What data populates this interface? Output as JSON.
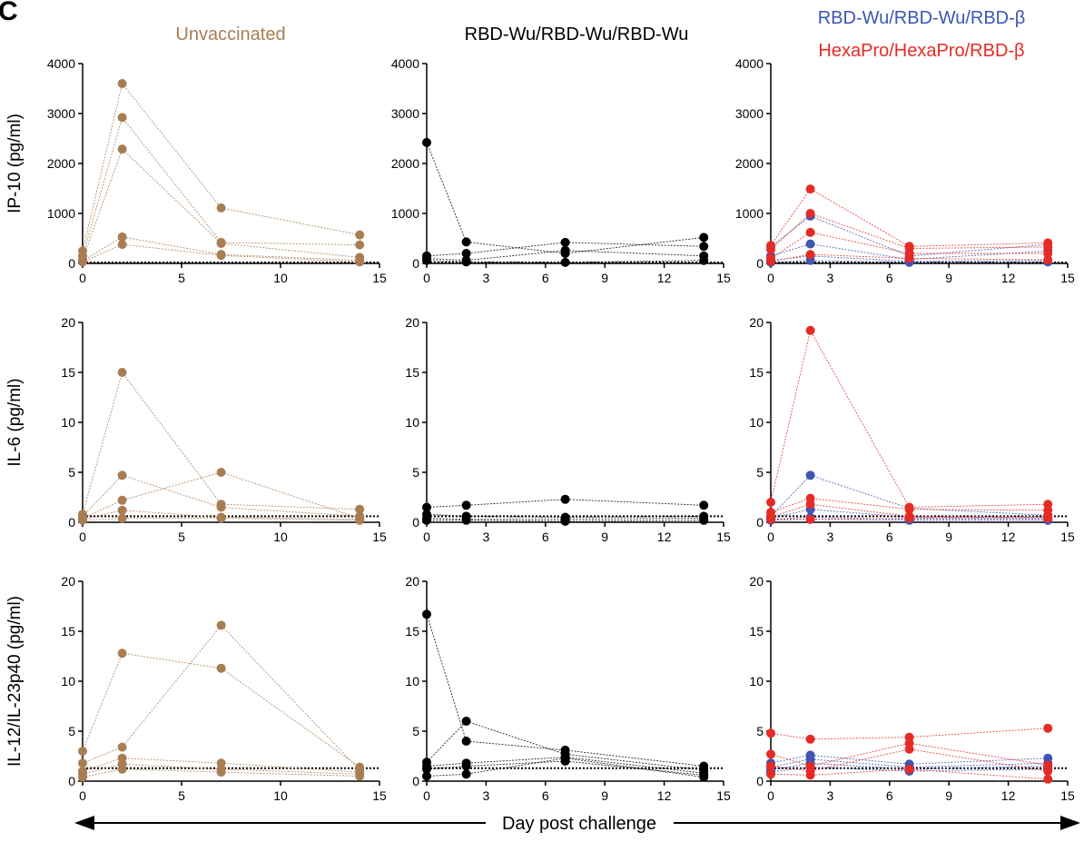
{
  "panel_letter": "C",
  "colors": {
    "unvaccinated": "#a87d54",
    "rbd_wu": "#000000",
    "rbd_beta": "#3d55b3",
    "hexapro": "#e62b24",
    "axis": "#000000",
    "dotted_line": "#000000"
  },
  "column_titles": {
    "unvaccinated": "Unvaccinated",
    "rbd_wu": "RBD-Wu/RBD-Wu/RBD-Wu",
    "rbd_beta": "RBD-Wu/RBD-Wu/RBD-β",
    "hexapro": "HexaPro/HexaPro/RBD-β"
  },
  "row_labels": [
    "IP-10 (pg/ml)",
    "IL-6 (pg/ml)",
    "IL-12/IL-23p40 (pg/ml)"
  ],
  "x_axis_title": "Day post challenge",
  "chart_data": [
    {
      "type": "line",
      "row": 0,
      "col": 0,
      "ylabel": "IP-10 (pg/ml)",
      "xlim": [
        0,
        15
      ],
      "xticks": [
        0,
        5,
        10,
        15
      ],
      "ylim": [
        0,
        4000
      ],
      "yticks": [
        0,
        1000,
        2000,
        3000,
        4000
      ],
      "threshold": 0,
      "series": [
        {
          "group": "unvaccinated",
          "x": [
            0,
            2,
            7,
            14
          ],
          "y": [
            250,
            3600,
            1110,
            570
          ]
        },
        {
          "group": "unvaccinated",
          "x": [
            0,
            2,
            7,
            14
          ],
          "y": [
            150,
            2920,
            420,
            370
          ]
        },
        {
          "group": "unvaccinated",
          "x": [
            0,
            2,
            7,
            14
          ],
          "y": [
            80,
            2290,
            400,
            120
          ]
        },
        {
          "group": "unvaccinated",
          "x": [
            0,
            2,
            7,
            14
          ],
          "y": [
            50,
            530,
            180,
            60
          ]
        },
        {
          "group": "unvaccinated",
          "x": [
            0,
            2,
            7,
            14
          ],
          "y": [
            30,
            380,
            160,
            30
          ]
        }
      ]
    },
    {
      "type": "line",
      "row": 0,
      "col": 1,
      "ylabel": "IP-10 (pg/ml)",
      "xlim": [
        0,
        15
      ],
      "xticks": [
        0,
        3,
        6,
        9,
        12,
        15
      ],
      "ylim": [
        0,
        4000
      ],
      "yticks": [
        0,
        1000,
        2000,
        3000,
        4000
      ],
      "threshold": 0,
      "series": [
        {
          "group": "rbd_wu",
          "x": [
            0,
            2,
            7,
            14
          ],
          "y": [
            2420,
            430,
            200,
            520
          ]
        },
        {
          "group": "rbd_wu",
          "x": [
            0,
            2,
            7,
            14
          ],
          "y": [
            150,
            200,
            420,
            340
          ]
        },
        {
          "group": "rbd_wu",
          "x": [
            0,
            2,
            7,
            14
          ],
          "y": [
            100,
            60,
            260,
            150
          ]
        },
        {
          "group": "rbd_wu",
          "x": [
            0,
            2,
            7,
            14
          ],
          "y": [
            60,
            30,
            20,
            60
          ]
        }
      ]
    },
    {
      "type": "line",
      "row": 0,
      "col": 2,
      "ylabel": "IP-10 (pg/ml)",
      "xlim": [
        0,
        15
      ],
      "xticks": [
        0,
        3,
        6,
        9,
        12,
        15
      ],
      "ylim": [
        0,
        4000
      ],
      "yticks": [
        0,
        1000,
        2000,
        3000,
        4000
      ],
      "threshold": 0,
      "series": [
        {
          "group": "rbd_beta",
          "x": [
            0,
            2,
            7,
            14
          ],
          "y": [
            330,
            950,
            150,
            380
          ]
        },
        {
          "group": "rbd_beta",
          "x": [
            0,
            2,
            7,
            14
          ],
          "y": [
            150,
            390,
            80,
            250
          ]
        },
        {
          "group": "rbd_beta",
          "x": [
            0,
            2,
            7,
            14
          ],
          "y": [
            60,
            150,
            40,
            60
          ]
        },
        {
          "group": "rbd_beta",
          "x": [
            0,
            2,
            7,
            14
          ],
          "y": [
            20,
            60,
            20,
            30
          ]
        },
        {
          "group": "hexapro",
          "x": [
            0,
            2,
            7,
            14
          ],
          "y": [
            360,
            1490,
            340,
            410
          ]
        },
        {
          "group": "hexapro",
          "x": [
            0,
            2,
            7,
            14
          ],
          "y": [
            280,
            1000,
            300,
            330
          ]
        },
        {
          "group": "hexapro",
          "x": [
            0,
            2,
            7,
            14
          ],
          "y": [
            100,
            620,
            200,
            200
          ]
        },
        {
          "group": "hexapro",
          "x": [
            0,
            2,
            7,
            14
          ],
          "y": [
            40,
            180,
            100,
            70
          ]
        }
      ]
    },
    {
      "type": "line",
      "row": 1,
      "col": 0,
      "ylabel": "IL-6 (pg/ml)",
      "xlim": [
        0,
        15
      ],
      "xticks": [
        0,
        5,
        10,
        15
      ],
      "ylim": [
        0,
        20
      ],
      "yticks": [
        0,
        5,
        10,
        15,
        20
      ],
      "threshold": 0.6,
      "series": [
        {
          "group": "unvaccinated",
          "x": [
            0,
            2,
            7,
            14
          ],
          "y": [
            0.8,
            15.0,
            1.8,
            1.3
          ]
        },
        {
          "group": "unvaccinated",
          "x": [
            0,
            2,
            7,
            14
          ],
          "y": [
            0.6,
            4.7,
            1.5,
            0.6
          ]
        },
        {
          "group": "unvaccinated",
          "x": [
            0,
            2,
            7,
            14
          ],
          "y": [
            0.4,
            2.2,
            5.0,
            0.4
          ]
        },
        {
          "group": "unvaccinated",
          "x": [
            0,
            2,
            7,
            14
          ],
          "y": [
            0.3,
            1.2,
            0.5,
            0.3
          ]
        },
        {
          "group": "unvaccinated",
          "x": [
            0,
            2,
            7,
            14
          ],
          "y": [
            0.2,
            0.4,
            0.4,
            0.2
          ]
        }
      ]
    },
    {
      "type": "line",
      "row": 1,
      "col": 1,
      "ylabel": "IL-6 (pg/ml)",
      "xlim": [
        0,
        15
      ],
      "xticks": [
        0,
        3,
        6,
        9,
        12,
        15
      ],
      "ylim": [
        0,
        20
      ],
      "yticks": [
        0,
        5,
        10,
        15,
        20
      ],
      "threshold": 0.6,
      "series": [
        {
          "group": "rbd_wu",
          "x": [
            0,
            2,
            7,
            14
          ],
          "y": [
            1.5,
            1.7,
            2.3,
            1.7
          ]
        },
        {
          "group": "rbd_wu",
          "x": [
            0,
            2,
            7,
            14
          ],
          "y": [
            0.8,
            0.6,
            0.5,
            0.6
          ]
        },
        {
          "group": "rbd_wu",
          "x": [
            0,
            2,
            7,
            14
          ],
          "y": [
            0.4,
            0.3,
            0.3,
            0.4
          ]
        },
        {
          "group": "rbd_wu",
          "x": [
            0,
            2,
            7,
            14
          ],
          "y": [
            0.2,
            0.2,
            0.1,
            0.2
          ]
        }
      ]
    },
    {
      "type": "line",
      "row": 1,
      "col": 2,
      "ylabel": "IL-6 (pg/ml)",
      "xlim": [
        0,
        15
      ],
      "xticks": [
        0,
        3,
        6,
        9,
        12,
        15
      ],
      "ylim": [
        0,
        20
      ],
      "yticks": [
        0,
        5,
        10,
        15,
        20
      ],
      "threshold": 0.6,
      "series": [
        {
          "group": "rbd_beta",
          "x": [
            0,
            2,
            7,
            14
          ],
          "y": [
            0.6,
            4.7,
            1.4,
            0.7
          ]
        },
        {
          "group": "rbd_beta",
          "x": [
            0,
            2,
            7,
            14
          ],
          "y": [
            0.4,
            1.3,
            0.5,
            0.5
          ]
        },
        {
          "group": "rbd_beta",
          "x": [
            0,
            2,
            7,
            14
          ],
          "y": [
            0.3,
            0.5,
            0.3,
            0.3
          ]
        },
        {
          "group": "rbd_beta",
          "x": [
            0,
            2,
            7,
            14
          ],
          "y": [
            0.2,
            0.3,
            0.2,
            0.2
          ]
        },
        {
          "group": "hexapro",
          "x": [
            0,
            2,
            7,
            14
          ],
          "y": [
            2.0,
            19.2,
            1.5,
            1.8
          ]
        },
        {
          "group": "hexapro",
          "x": [
            0,
            2,
            7,
            14
          ],
          "y": [
            1.0,
            2.4,
            1.3,
            1.2
          ]
        },
        {
          "group": "hexapro",
          "x": [
            0,
            2,
            7,
            14
          ],
          "y": [
            0.5,
            1.8,
            0.6,
            0.6
          ]
        },
        {
          "group": "hexapro",
          "x": [
            0,
            2,
            7,
            14
          ],
          "y": [
            0.3,
            0.3,
            0.4,
            0.4
          ]
        }
      ]
    },
    {
      "type": "line",
      "row": 2,
      "col": 0,
      "ylabel": "IL-12/IL-23p40 (pg/ml)",
      "xlim": [
        0,
        15
      ],
      "xticks": [
        0,
        5,
        10,
        15
      ],
      "ylim": [
        0,
        20
      ],
      "yticks": [
        0,
        5,
        10,
        15,
        20
      ],
      "threshold": 1.3,
      "series": [
        {
          "group": "unvaccinated",
          "x": [
            0,
            2,
            7,
            14
          ],
          "y": [
            3.0,
            12.8,
            11.3,
            1.4
          ]
        },
        {
          "group": "unvaccinated",
          "x": [
            0,
            2,
            7,
            14
          ],
          "y": [
            1.8,
            3.4,
            15.6,
            1.1
          ]
        },
        {
          "group": "unvaccinated",
          "x": [
            0,
            2,
            7,
            14
          ],
          "y": [
            1.0,
            2.3,
            1.8,
            0.9
          ]
        },
        {
          "group": "unvaccinated",
          "x": [
            0,
            2,
            7,
            14
          ],
          "y": [
            0.7,
            1.7,
            1.2,
            0.7
          ]
        },
        {
          "group": "unvaccinated",
          "x": [
            0,
            2,
            7,
            14
          ],
          "y": [
            0.4,
            1.2,
            0.9,
            0.5
          ]
        }
      ]
    },
    {
      "type": "line",
      "row": 2,
      "col": 1,
      "ylabel": "IL-12/IL-23p40 (pg/ml)",
      "xlim": [
        0,
        15
      ],
      "xticks": [
        0,
        3,
        6,
        9,
        12,
        15
      ],
      "ylim": [
        0,
        20
      ],
      "yticks": [
        0,
        5,
        10,
        15,
        20
      ],
      "threshold": 1.3,
      "series": [
        {
          "group": "rbd_wu",
          "x": [
            0,
            2,
            7,
            14
          ],
          "y": [
            16.7,
            4.0,
            3.1,
            1.5
          ]
        },
        {
          "group": "rbd_wu",
          "x": [
            0,
            2,
            7,
            14
          ],
          "y": [
            1.9,
            6.0,
            2.7,
            1.1
          ]
        },
        {
          "group": "rbd_wu",
          "x": [
            0,
            2,
            7,
            14
          ],
          "y": [
            1.5,
            1.8,
            2.4,
            0.8
          ]
        },
        {
          "group": "rbd_wu",
          "x": [
            0,
            2,
            7,
            14
          ],
          "y": [
            1.2,
            1.5,
            2.0,
            0.6
          ]
        },
        {
          "group": "rbd_wu",
          "x": [
            0,
            2,
            7,
            14
          ],
          "y": [
            0.5,
            0.7,
            2.3,
            0.4
          ]
        }
      ]
    },
    {
      "type": "line",
      "row": 2,
      "col": 2,
      "ylabel": "IL-12/IL-23p40 (pg/ml)",
      "xlim": [
        0,
        15
      ],
      "xticks": [
        0,
        3,
        6,
        9,
        12,
        15
      ],
      "ylim": [
        0,
        20
      ],
      "yticks": [
        0,
        5,
        10,
        15,
        20
      ],
      "threshold": 1.3,
      "series": [
        {
          "group": "rbd_beta",
          "x": [
            0,
            2,
            7,
            14
          ],
          "y": [
            1.8,
            2.6,
            1.7,
            2.3
          ]
        },
        {
          "group": "rbd_beta",
          "x": [
            0,
            2,
            7,
            14
          ],
          "y": [
            1.4,
            2.2,
            1.4,
            1.8
          ]
        },
        {
          "group": "rbd_beta",
          "x": [
            0,
            2,
            7,
            14
          ],
          "y": [
            1.1,
            1.8,
            1.2,
            1.5
          ]
        },
        {
          "group": "rbd_beta",
          "x": [
            0,
            2,
            7,
            14
          ],
          "y": [
            0.9,
            1.4,
            1.0,
            1.2
          ]
        },
        {
          "group": "hexapro",
          "x": [
            0,
            2,
            7,
            14
          ],
          "y": [
            4.8,
            4.2,
            4.4,
            5.3
          ]
        },
        {
          "group": "hexapro",
          "x": [
            0,
            2,
            7,
            14
          ],
          "y": [
            2.7,
            1.5,
            3.8,
            1.6
          ]
        },
        {
          "group": "hexapro",
          "x": [
            0,
            2,
            7,
            14
          ],
          "y": [
            1.5,
            1.0,
            3.2,
            1.0
          ]
        },
        {
          "group": "hexapro",
          "x": [
            0,
            2,
            7,
            14
          ],
          "y": [
            0.7,
            0.6,
            1.2,
            0.2
          ]
        }
      ]
    }
  ]
}
